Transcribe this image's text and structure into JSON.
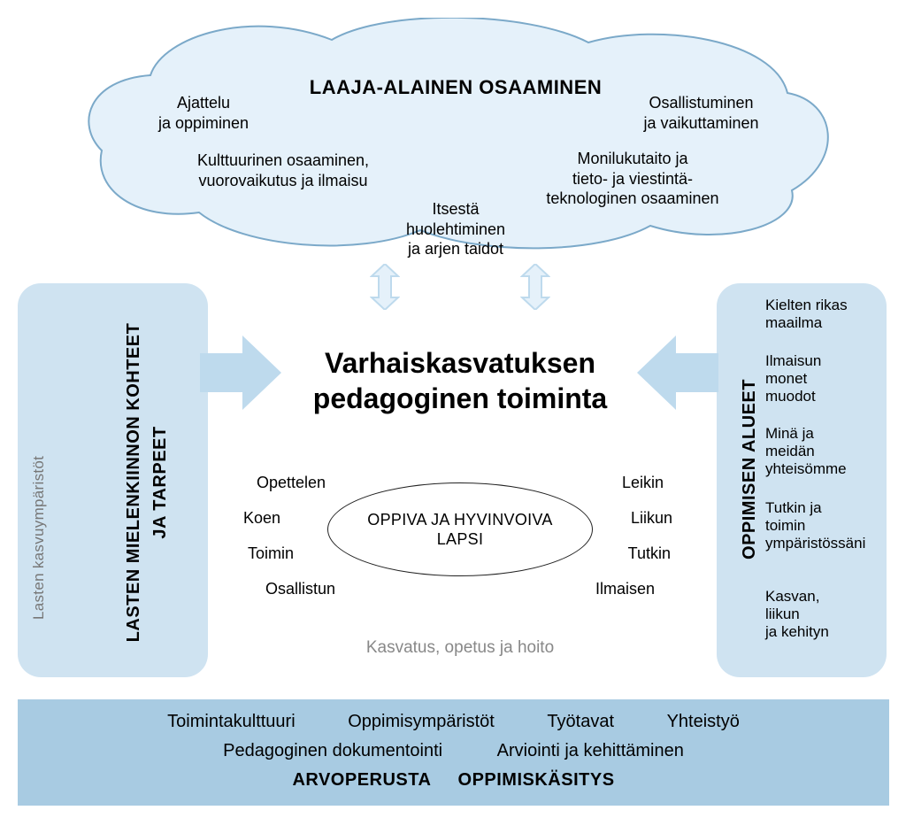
{
  "colors": {
    "cloud_fill": "#e5f1fa",
    "cloud_stroke": "#7ba9c9",
    "leftbox_fill": "#cfe3f1",
    "rightbox_fill": "#cfe3f1",
    "bottombox_fill": "#a8cbe2",
    "arrow_fill": "#bedaed",
    "arrow_stroke": "#bedaed",
    "doublearrow_fill": "#e5f1fa",
    "doublearrow_stroke": "#bedaed",
    "text": "#1a1a1a",
    "text_gray": "#888888"
  },
  "cloud": {
    "title": "LAAJA-ALAINEN OSAAMINEN",
    "items": {
      "ajattelu": "Ajattelu\nja oppiminen",
      "osallistuminen": "Osallistuminen\nja vaikuttaminen",
      "kulttuurinen": "Kulttuurinen osaaminen,\nvuorovaikutus ja ilmaisu",
      "monilukutaito": "Monilukutaito ja\ntieto- ja viestintä-\nteknologinen osaaminen",
      "itsesta": "Itsestä\nhuolehtiminen\nja arjen taidot"
    }
  },
  "left": {
    "gray_label": "Lasten kasvuympäristöt",
    "title_line1": "LASTEN MIELENKIINNON KOHTEET",
    "title_line2": "JA TARPEET"
  },
  "right": {
    "title": "OPPIMISEN ALUEET",
    "items": [
      "Kielten rikas\nmaailma",
      "Ilmaisun\nmonet\nmuodot",
      "Minä ja\nmeidän\nyhteisömme",
      "Tutkin ja\ntoimin\nympäristössäni",
      "Kasvan,\nliikun\nja kehityn"
    ]
  },
  "center": {
    "title_line1": "Varhaiskasvatuksen",
    "title_line2": "pedagoginen toiminta",
    "ellipse_line1": "OPPIVA JA HYVINVOIVA",
    "ellipse_line2": "LAPSI",
    "left_verbs": [
      "Opettelen",
      "Koen",
      "Toimin",
      "Osallistun"
    ],
    "right_verbs": [
      "Leikin",
      "Liikun",
      "Tutkin",
      "Ilmaisen"
    ],
    "footer_gray": "Kasvatus, opetus ja hoito"
  },
  "bottom": {
    "row1": [
      "Toimintakulttuuri",
      "Oppimisympäristöt",
      "Työtavat",
      "Yhteistyö"
    ],
    "row2": [
      "Pedagoginen dokumentointi",
      "Arviointi ja kehittäminen"
    ],
    "row3": [
      "ARVOPERUSTA",
      "OPPIMISKÄSITYS"
    ]
  }
}
